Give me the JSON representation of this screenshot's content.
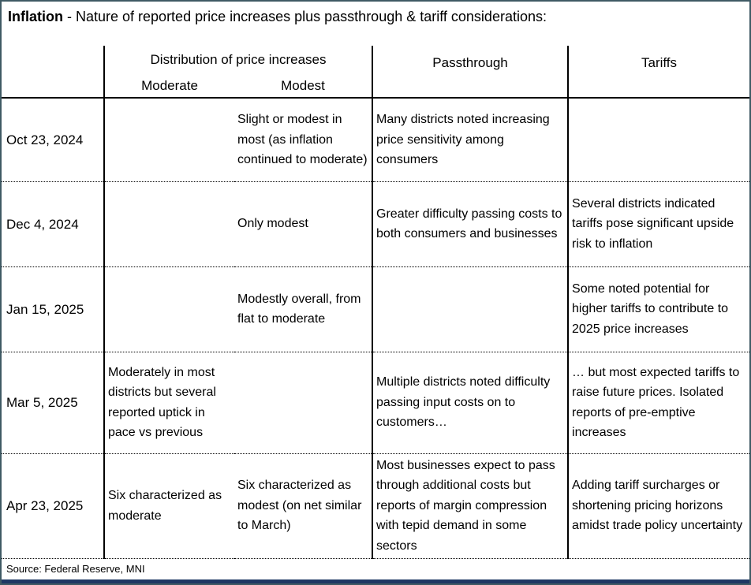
{
  "title": {
    "bold": "Inflation",
    "rest": " - Nature of reported price increases plus passthrough & tariff considerations:"
  },
  "table": {
    "header": {
      "group": "Distribution of price increases",
      "sub_moderate": "Moderate",
      "sub_modest": "Modest",
      "passthrough": "Passthrough",
      "tariffs": "Tariffs"
    },
    "rows": [
      {
        "date": "Oct 23, 2024",
        "moderate": "",
        "modest": "Slight or modest in most (as inflation continued to moderate)",
        "passthrough": "Many districts noted increasing price sensitivity among consumers",
        "tariffs": ""
      },
      {
        "date": "Dec 4, 2024",
        "moderate": "",
        "modest": "Only modest",
        "passthrough": "Greater difficulty passing costs to both consumers and businesses",
        "tariffs": "Several districts indicated tariffs pose significant upside risk to inflation"
      },
      {
        "date": "Jan 15, 2025",
        "moderate": "",
        "modest": "Modestly overall, from flat to moderate",
        "passthrough": "",
        "tariffs": "Some noted potential for higher tariffs to contribute to 2025 price increases"
      },
      {
        "date": "Mar 5, 2025",
        "moderate": "Moderately in most districts but several reported uptick in pace vs previous",
        "modest": "",
        "passthrough": "Multiple districts noted difficulty passing input costs on to customers…",
        "tariffs": "… but most expected tariffs to raise future prices. Isolated reports of pre-emptive increases"
      },
      {
        "date": "Apr 23, 2025",
        "moderate": "Six characterized as moderate",
        "modest": "Six characterized as modest (on net similar to March)",
        "passthrough": "Most businesses expect to pass through additional costs but reports of margin compression with tepid demand in some sectors",
        "tariffs": "Adding tariff surcharges or shortening pricing horizons amidst trade policy uncertainty"
      }
    ]
  },
  "source": "Source: Federal Reserve, MNI",
  "colors": {
    "frame_border": "#3f5a64",
    "bottom_bar": "#1f3864",
    "table_line": "#000000"
  }
}
